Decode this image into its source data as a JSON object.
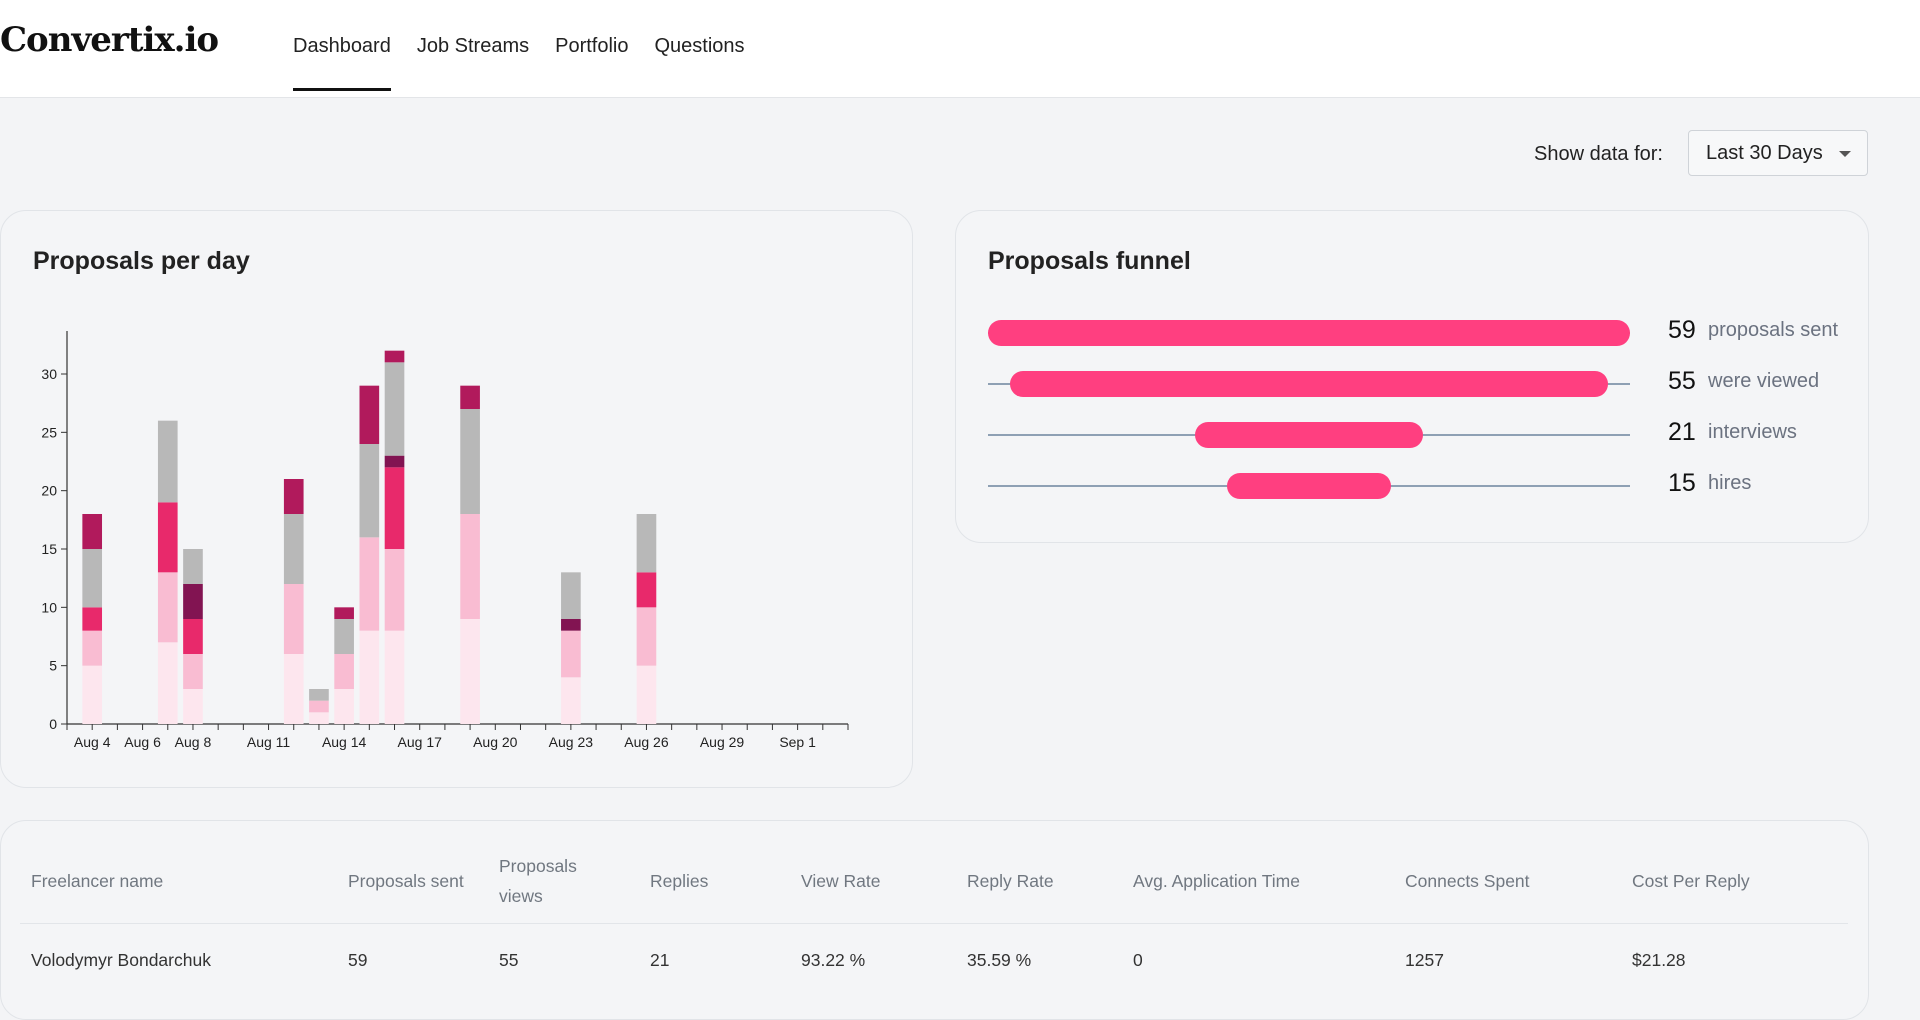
{
  "app": {
    "brand": "Convertix.io"
  },
  "nav": {
    "tabs": [
      {
        "label": "Dashboard",
        "active": true
      },
      {
        "label": "Job Streams",
        "active": false
      },
      {
        "label": "Portfolio",
        "active": false
      },
      {
        "label": "Questions",
        "active": false
      }
    ]
  },
  "filter": {
    "label": "Show data for:",
    "value": "Last 30 Days"
  },
  "chart_card": {
    "title": "Proposals per day"
  },
  "chart_data": {
    "type": "bar",
    "stacked": true,
    "title": "Proposals per day",
    "ylim": [
      0,
      33
    ],
    "yticks": [
      0,
      5,
      10,
      15,
      20,
      25,
      30
    ],
    "xlim": [
      "2025-08-03",
      "2025-09-03"
    ],
    "xtick_labels": [
      "Aug 4",
      "Aug 6",
      "Aug 8",
      "Aug 11",
      "Aug 14",
      "Aug 17",
      "Aug 20",
      "Aug 23",
      "Aug 26",
      "Aug 29",
      "Sep 1"
    ],
    "xtick_dates": [
      "2025-08-04",
      "2025-08-06",
      "2025-08-08",
      "2025-08-11",
      "2025-08-14",
      "2025-08-17",
      "2025-08-20",
      "2025-08-23",
      "2025-08-26",
      "2025-08-29",
      "2025-09-01"
    ],
    "series_colors": [
      "#fde6ee",
      "#f9bcd2",
      "#e8296b",
      "#821452",
      "#b8b8b8",
      "#b11a5c"
    ],
    "days": [
      {
        "date": "2025-08-04",
        "segments": [
          5,
          3,
          2,
          0,
          5,
          3
        ]
      },
      {
        "date": "2025-08-07",
        "segments": [
          7,
          6,
          6,
          0,
          7,
          0
        ]
      },
      {
        "date": "2025-08-08",
        "segments": [
          3,
          3,
          3,
          3,
          3,
          0
        ]
      },
      {
        "date": "2025-08-12",
        "segments": [
          6,
          6,
          0,
          0,
          6,
          3
        ]
      },
      {
        "date": "2025-08-13",
        "segments": [
          1,
          1,
          0,
          0,
          1,
          0
        ]
      },
      {
        "date": "2025-08-14",
        "segments": [
          3,
          3,
          0,
          0,
          3,
          1
        ]
      },
      {
        "date": "2025-08-15",
        "segments": [
          8,
          8,
          0,
          0,
          8,
          5
        ]
      },
      {
        "date": "2025-08-16",
        "segments": [
          8,
          7,
          7,
          1,
          8,
          1
        ]
      },
      {
        "date": "2025-08-19",
        "segments": [
          9,
          9,
          0,
          0,
          9,
          2
        ]
      },
      {
        "date": "2025-08-23",
        "segments": [
          4,
          4,
          0,
          1,
          4,
          0
        ]
      },
      {
        "date": "2025-08-26",
        "segments": [
          5,
          5,
          3,
          0,
          5,
          0
        ]
      }
    ]
  },
  "funnel_card": {
    "title": "Proposals funnel",
    "rows": [
      {
        "count": "59",
        "label": "proposals sent",
        "value": 59
      },
      {
        "count": "55",
        "label": "were viewed",
        "value": 55
      },
      {
        "count": "21",
        "label": "interviews",
        "value": 21
      },
      {
        "count": "15",
        "label": "hires",
        "value": 15
      }
    ],
    "max": 59
  },
  "table": {
    "headers": [
      "Freelancer name",
      "Proposals sent",
      "Proposals views",
      "Replies",
      "View Rate",
      "Reply Rate",
      "Avg. Application Time",
      "Connects Spent",
      "Cost Per Reply"
    ],
    "rows": [
      [
        "Volodymyr Bondarchuk",
        "59",
        "55",
        "21",
        "93.22 %",
        "35.59 %",
        "0",
        "1257",
        "$21.28"
      ]
    ]
  }
}
